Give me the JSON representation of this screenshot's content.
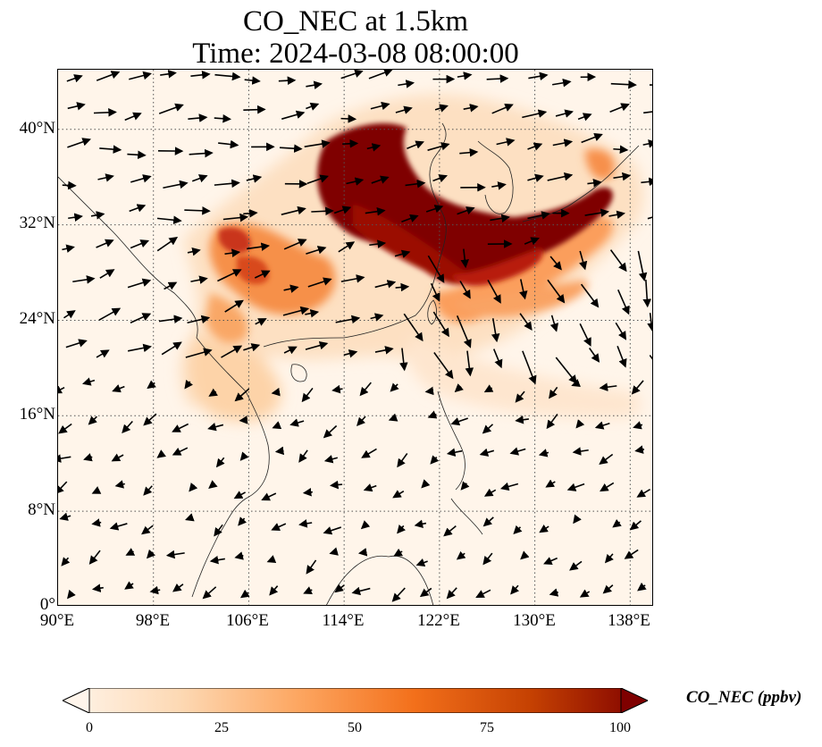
{
  "title": {
    "line1": "CO_NEC at 1.5km",
    "line2": "Time: 2024-03-08 08:00:00"
  },
  "map": {
    "lon_range": [
      90,
      140
    ],
    "lat_range": [
      0,
      45
    ],
    "lat_ticks": [
      "0°",
      "8°N",
      "16°N",
      "24°N",
      "32°N",
      "40°N"
    ],
    "lon_ticks": [
      "90°E",
      "98°E",
      "106°E",
      "114°E",
      "122°E",
      "130°E",
      "138°E"
    ],
    "gridlines": "dotted",
    "background_color": "#fff5ea"
  },
  "colorbar": {
    "label": "CO_NEC (ppbv)",
    "ticks": [
      "0",
      "25",
      "50",
      "75",
      "100"
    ],
    "min": 0,
    "max": 100,
    "colormap": [
      "#fff5eb",
      "#fdd9b4",
      "#fda762",
      "#f3701b",
      "#c54102",
      "#7f0000"
    ],
    "extend": "both"
  }
}
